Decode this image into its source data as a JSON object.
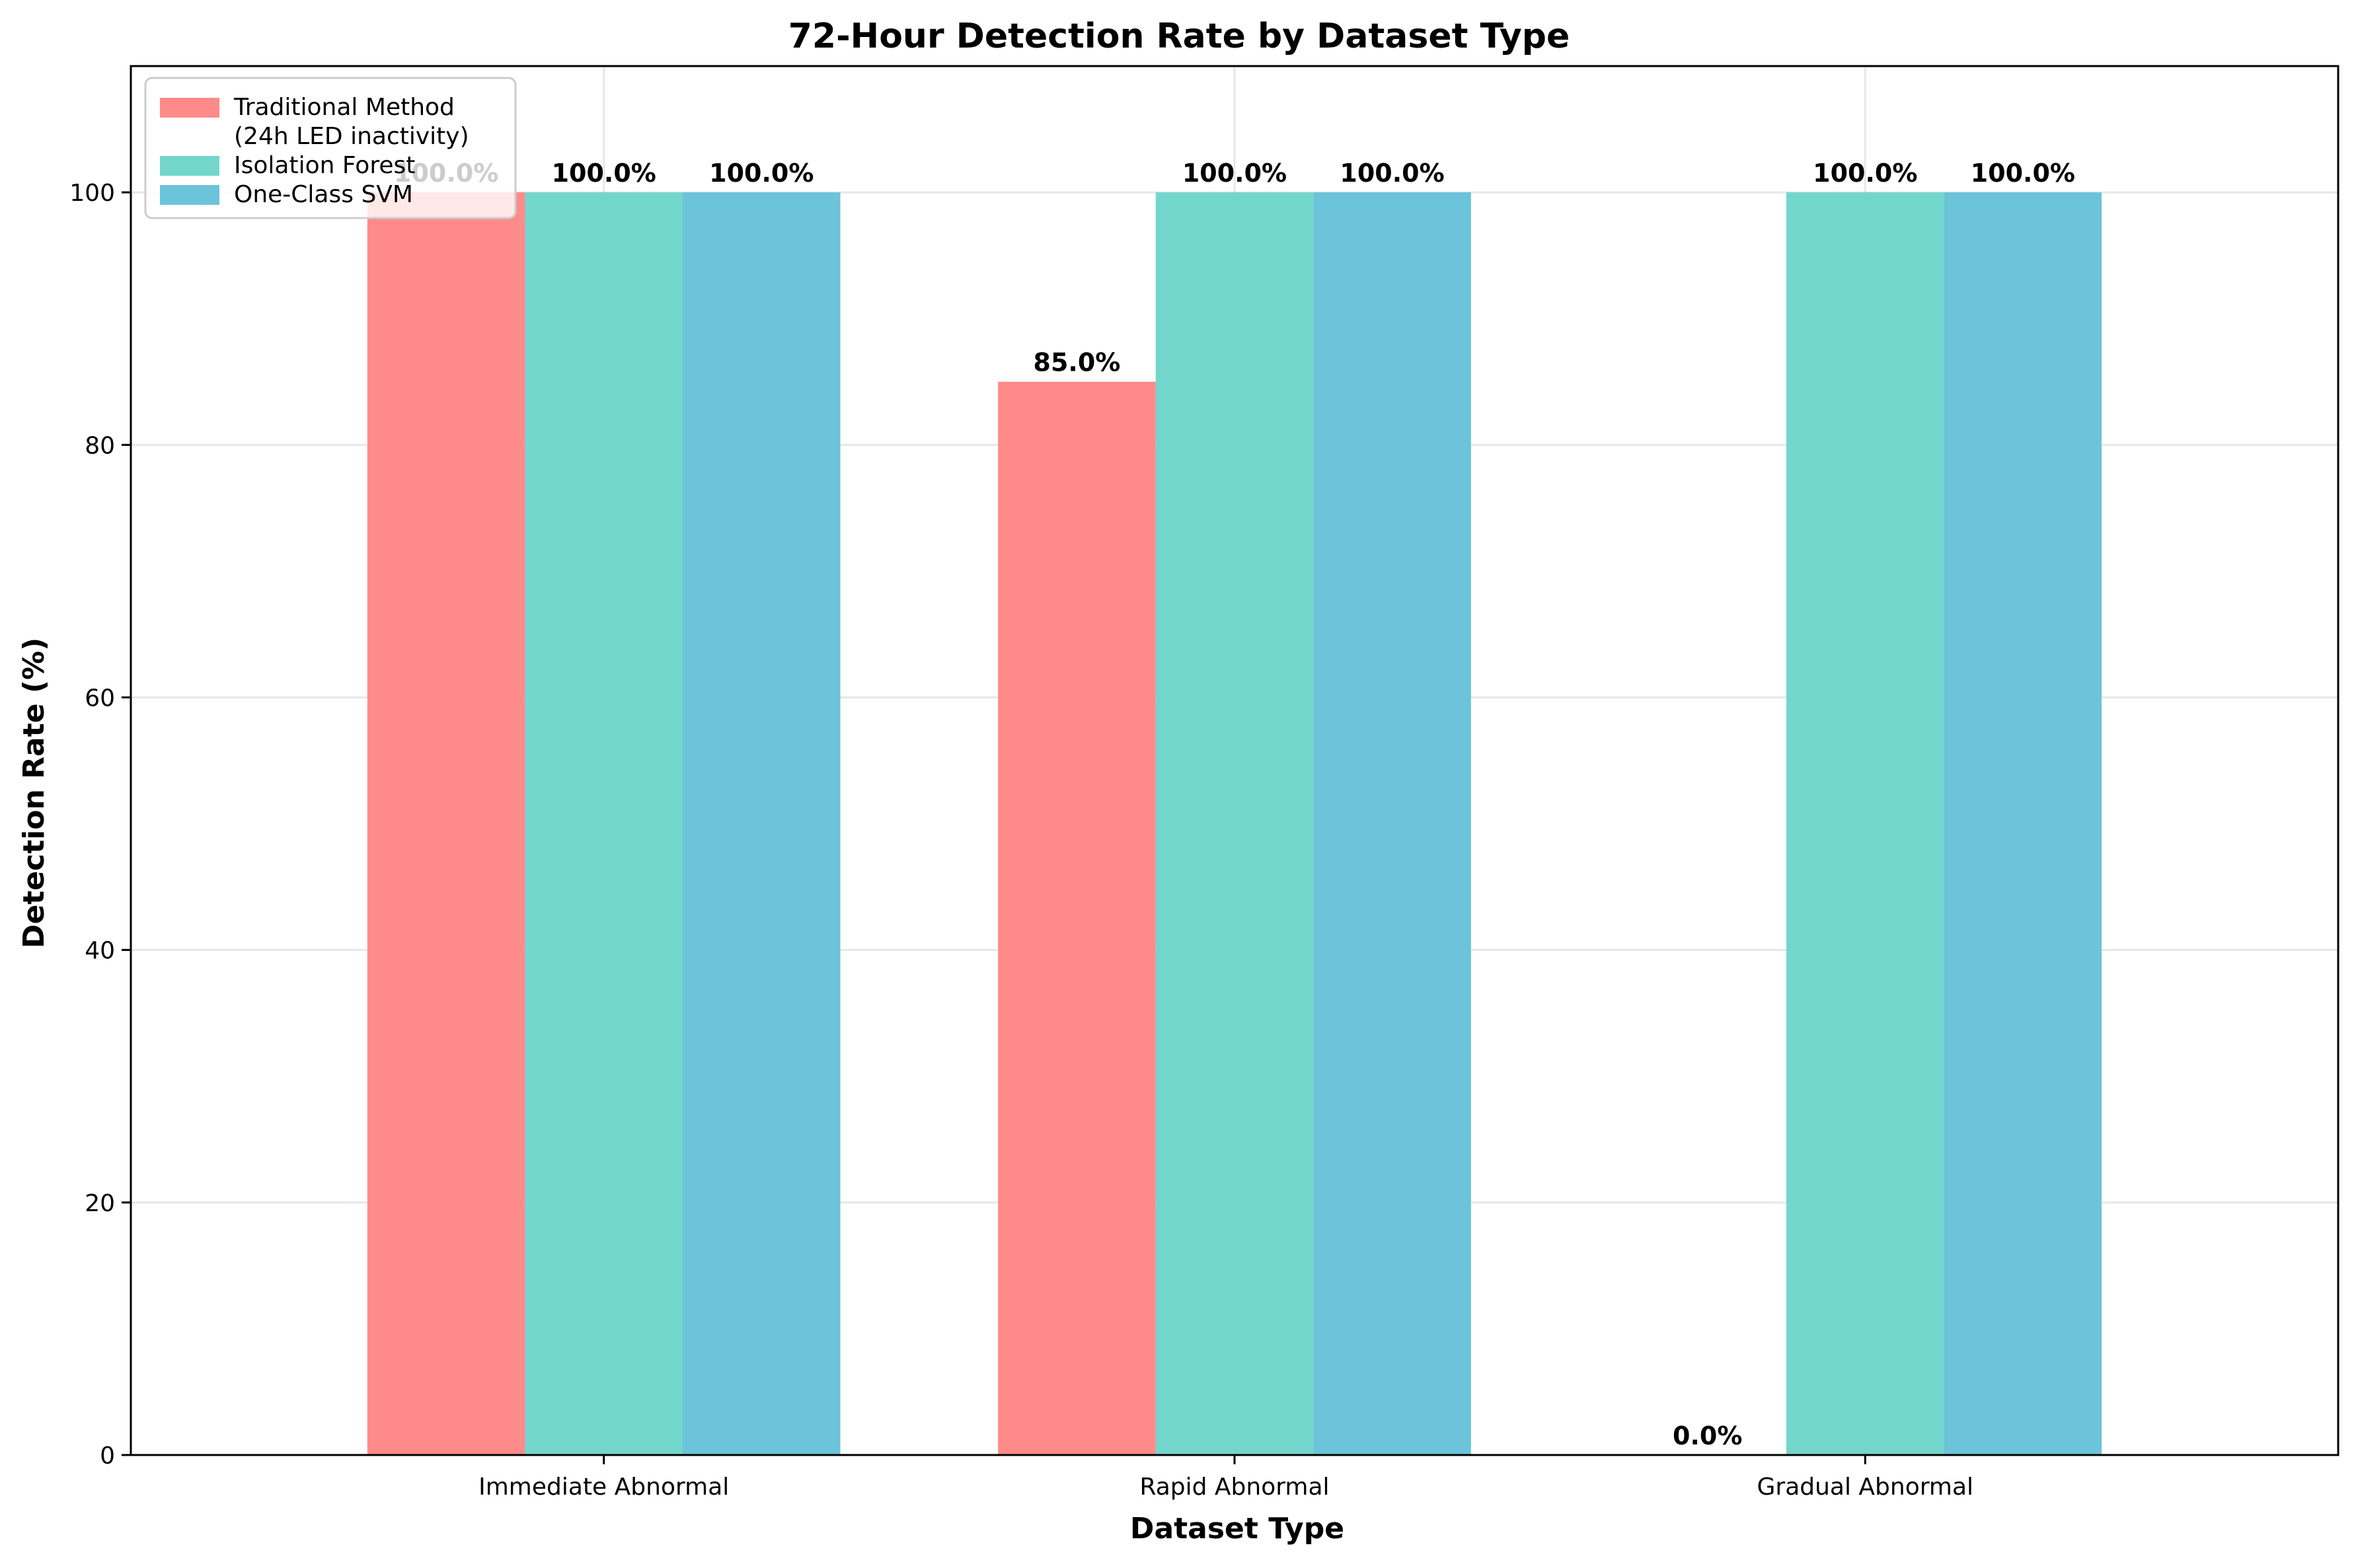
{
  "chart_data": {
    "type": "bar",
    "title": "72-Hour Detection Rate by Dataset Type",
    "xlabel": "Dataset Type",
    "ylabel": "Detection Rate (%)",
    "categories": [
      "Immediate Abnormal",
      "Rapid Abnormal",
      "Gradual Abnormal"
    ],
    "ylim": [
      0,
      110
    ],
    "yticks": [
      0,
      20,
      40,
      60,
      80,
      100
    ],
    "grid": true,
    "legend_position": "top-left",
    "series": [
      {
        "name": "Traditional Method\n(24h LED inactivity)",
        "values": [
          100.0,
          85.0,
          0.0
        ],
        "labels": [
          "100.0%",
          "85.0%",
          "0.0%"
        ],
        "color": "#ff8a8a"
      },
      {
        "name": "Isolation Forest",
        "values": [
          100.0,
          100.0,
          100.0
        ],
        "labels": [
          "100.0%",
          "100.0%",
          "100.0%"
        ],
        "color": "#73d6cc"
      },
      {
        "name": "One-Class SVM",
        "values": [
          100.0,
          100.0,
          100.0
        ],
        "labels": [
          "100.0%",
          "100.0%",
          "100.0%"
        ],
        "color": "#6bc4d9"
      }
    ]
  }
}
